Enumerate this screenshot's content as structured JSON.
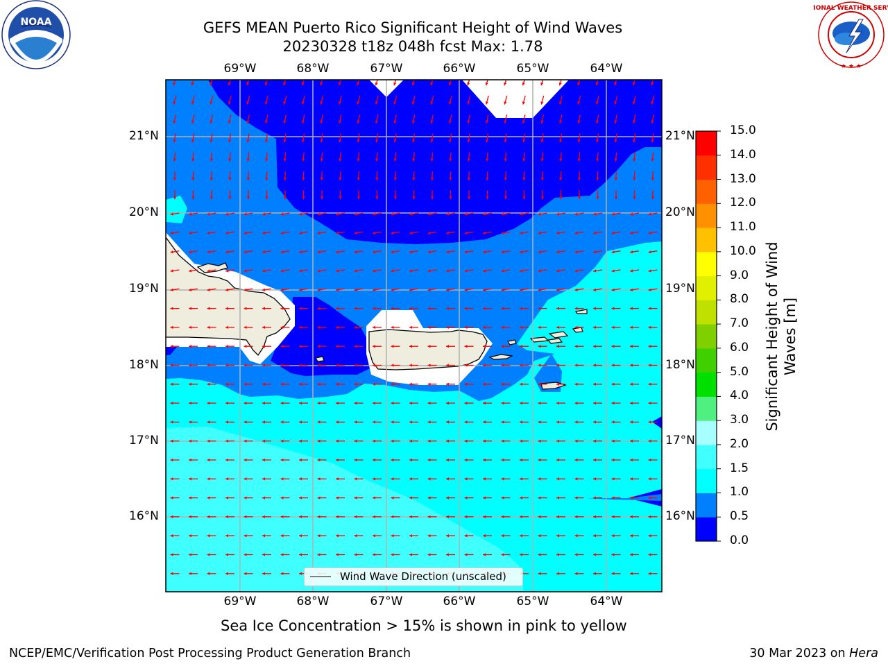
{
  "header": {
    "title": "GEFS MEAN Puerto Rico Significant Height of Wind Waves",
    "subtitle": "20230328 t18z 048h fcst   Max: 1.78"
  },
  "map": {
    "lon_labels": [
      "69°W",
      "68°W",
      "67°W",
      "66°W",
      "65°W",
      "64°W"
    ],
    "lat_labels": [
      "21°N",
      "20°N",
      "19°N",
      "18°N",
      "17°N",
      "16°N"
    ],
    "legend_label": "Wind Wave Direction (unscaled)",
    "arrow_color": "#ff0000",
    "land_color": "#efedde"
  },
  "colorbar": {
    "title": "Significant Height of Wind Waves [m]",
    "ticks": [
      "0.0",
      "0.5",
      "1.0",
      "1.5",
      "2.0",
      "3.0",
      "4.0",
      "5.0",
      "6.0",
      "7.0",
      "8.0",
      "9.0",
      "10.0",
      "11.0",
      "12.0",
      "13.0",
      "14.0",
      "15.0"
    ],
    "colors": [
      "#0000ff",
      "#0080ff",
      "#00ffff",
      "#40ffff",
      "#a8ffff",
      "#50f080",
      "#00e000",
      "#40d000",
      "#80d000",
      "#c0e000",
      "#e0f000",
      "#ffff00",
      "#ffc000",
      "#ff9000",
      "#ff6000",
      "#ff3000",
      "#ff0000"
    ]
  },
  "note": "Sea Ice Concentration > 15% is shown in pink to yellow",
  "footer": {
    "left": "NCEP/EMC/Verification Post Processing Product Generation Branch",
    "right_date": "30 Mar 2023 on ",
    "right_host": "Hera"
  },
  "logos": {
    "noaa": "NOAA",
    "nws": "NATIONAL WEATHER SERVICE"
  }
}
